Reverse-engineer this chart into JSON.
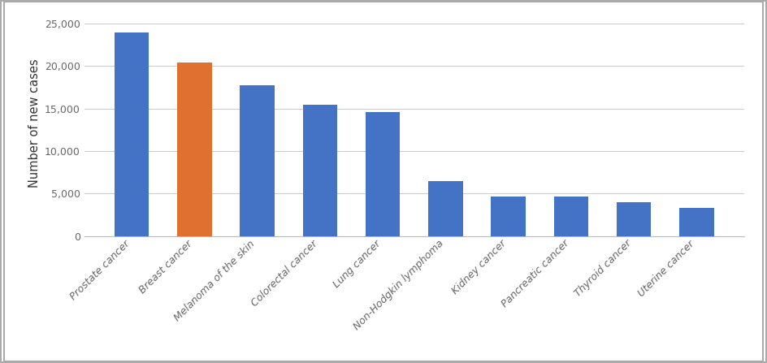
{
  "categories": [
    "Prostate cancer",
    "Breast cancer",
    "Melanoma of the skin",
    "Colorectal cancer",
    "Lung cancer",
    "Non-Hodgkin lymphoma",
    "Kidney cancer",
    "Pancreatic cancer",
    "Thyroid cancer",
    "Uterine cancer"
  ],
  "values": [
    24000,
    20400,
    17750,
    15400,
    14600,
    6500,
    4650,
    4650,
    3950,
    3300
  ],
  "bar_colors": [
    "#4472c4",
    "#e07030",
    "#4472c4",
    "#4472c4",
    "#4472c4",
    "#4472c4",
    "#4472c4",
    "#4472c4",
    "#4472c4",
    "#4472c4"
  ],
  "ylabel": "Number of new cases",
  "ylim": [
    0,
    26500
  ],
  "yticks": [
    0,
    5000,
    10000,
    15000,
    20000,
    25000
  ],
  "background_color": "#ffffff",
  "bar_width": 0.55,
  "grid_color": "#cccccc",
  "ylabel_fontsize": 10.5,
  "tick_fontsize": 9,
  "outer_border_color": "#aaaaaa"
}
